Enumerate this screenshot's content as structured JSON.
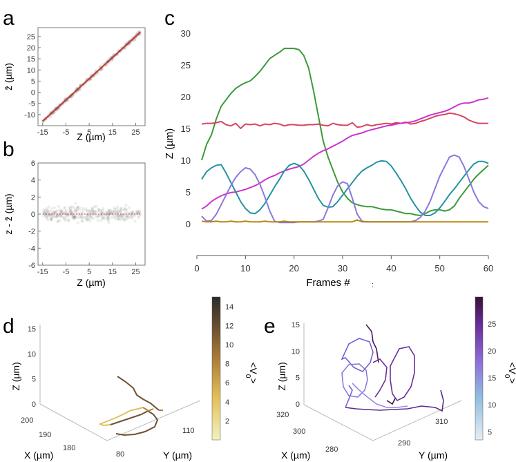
{
  "panels": {
    "a": "a",
    "b": "b",
    "c": "c",
    "d": "d",
    "e": "e"
  },
  "colors": {
    "green": "#3a9a3a",
    "red": "#d6455e",
    "magenta": "#cc33cc",
    "teal": "#22939f",
    "purple": "#8a78e0",
    "orange": "#b8860b",
    "diag": "#c0392b",
    "scatter": "#555555"
  },
  "chart_data": [
    {
      "id": "a",
      "type": "scatter",
      "xlabel": "Z (µm)",
      "ylabel": "ẑ (µm)",
      "xlim": [
        -17,
        29
      ],
      "ylim": [
        -15,
        29
      ],
      "xticks": [
        -15,
        -5,
        5,
        15,
        25
      ],
      "yticks": [
        -10,
        -5,
        0,
        5,
        10,
        15,
        20,
        25
      ],
      "fit_line": {
        "x": [
          -15,
          27
        ],
        "y": [
          -13,
          27
        ]
      }
    },
    {
      "id": "b",
      "type": "scatter",
      "xlabel": "Z (µm)",
      "ylabel": "z - ẑ (µm)",
      "xlim": [
        -17,
        29
      ],
      "ylim": [
        -6,
        6
      ],
      "xticks": [
        -15,
        -5,
        5,
        15,
        25
      ],
      "yticks": [
        -6,
        -4,
        -2,
        0,
        2,
        4,
        6
      ],
      "fit_line": {
        "x": [
          -15,
          27
        ],
        "y": [
          0,
          0
        ]
      }
    },
    {
      "id": "c",
      "type": "line",
      "xlabel": "Frames #",
      "ylabel": "Z (µm)",
      "xlim": [
        0,
        60
      ],
      "ylim": [
        -5,
        30
      ],
      "xticks": [
        0,
        10,
        20,
        30,
        40,
        50,
        60
      ],
      "yticks": [
        0,
        5,
        10,
        15,
        20,
        25,
        30
      ],
      "series": [
        {
          "color": "green",
          "x": [
            1,
            2,
            3,
            4,
            5,
            6,
            7,
            8,
            9,
            10,
            11,
            12,
            13,
            14,
            15,
            16,
            17,
            18,
            19,
            20,
            21,
            22,
            23,
            24,
            25,
            26,
            27,
            28,
            29,
            30,
            31,
            32,
            33,
            34,
            35,
            36,
            37,
            38,
            39,
            40,
            41,
            42,
            43,
            44,
            45,
            46,
            47,
            48,
            49,
            50,
            51,
            52,
            53,
            54,
            55,
            56,
            57,
            58,
            59,
            60
          ],
          "values": [
            10,
            12.5,
            14,
            16.5,
            18.5,
            19.5,
            20.5,
            21.3,
            21.8,
            22.2,
            22.5,
            23.2,
            24,
            25,
            26,
            26.5,
            27,
            27.6,
            27.6,
            27.6,
            27.4,
            26.5,
            24.5,
            21,
            17,
            13,
            10.5,
            8.5,
            6.5,
            5,
            4,
            3.3,
            3,
            2.8,
            2.7,
            2.7,
            2.5,
            2.3,
            2.2,
            2.2,
            2,
            1.8,
            1.6,
            1.6,
            1.4,
            1.3,
            1.6,
            2,
            2.2,
            2.2,
            2,
            2.2,
            2.8,
            4,
            5,
            6,
            7,
            7.8,
            8.5,
            9.2
          ]
        },
        {
          "color": "red",
          "x": [
            1,
            2,
            3,
            4,
            5,
            6,
            7,
            8,
            9,
            10,
            11,
            12,
            13,
            14,
            15,
            16,
            17,
            18,
            19,
            20,
            21,
            22,
            23,
            24,
            25,
            26,
            27,
            28,
            29,
            30,
            31,
            32,
            33,
            34,
            35,
            36,
            37,
            38,
            39,
            40,
            41,
            42,
            43,
            44,
            45,
            46,
            47,
            48,
            49,
            50,
            51,
            52,
            53,
            54,
            55,
            56,
            57,
            58,
            59,
            60
          ],
          "values": [
            15.7,
            15.8,
            15.8,
            15.9,
            16.1,
            15.6,
            15.4,
            15.8,
            15.0,
            15.7,
            15.6,
            15.7,
            15.4,
            15.7,
            15.6,
            15.8,
            15.7,
            15.4,
            15.6,
            15.6,
            15.5,
            15.5,
            15.6,
            15.6,
            15.7,
            15.5,
            15.4,
            15.8,
            15.6,
            15.5,
            15.5,
            15.9,
            15.2,
            15.3,
            15.6,
            15.4,
            15.6,
            15.7,
            15.8,
            15.7,
            15.9,
            15.8,
            16.0,
            15.7,
            15.8,
            16.1,
            16.3,
            16.6,
            16.9,
            17.1,
            17.2,
            17.4,
            17.3,
            17.1,
            16.8,
            16.3,
            16.0,
            15.8,
            15.8,
            15.8
          ]
        },
        {
          "color": "magenta",
          "x": [
            1,
            2,
            3,
            4,
            5,
            6,
            7,
            8,
            9,
            10,
            11,
            12,
            13,
            14,
            15,
            16,
            17,
            18,
            19,
            20,
            21,
            22,
            23,
            24,
            25,
            26,
            27,
            28,
            29,
            30,
            31,
            32,
            33,
            34,
            35,
            36,
            37,
            38,
            39,
            40,
            41,
            42,
            43,
            44,
            45,
            46,
            47,
            48,
            49,
            50,
            51,
            52,
            53,
            54,
            55,
            56,
            57,
            58,
            59,
            60
          ],
          "values": [
            2.3,
            2.8,
            3.5,
            4.0,
            4.4,
            4.7,
            4.9,
            5.0,
            5.2,
            5.4,
            5.7,
            6.0,
            6.4,
            6.9,
            7.3,
            7.6,
            8.0,
            8.3,
            8.6,
            8.8,
            9.0,
            9.4,
            10.0,
            10.6,
            11.1,
            11.5,
            11.8,
            12.2,
            12.6,
            13.0,
            13.5,
            13.9,
            14.1,
            14.3,
            14.6,
            14.8,
            15.0,
            15.2,
            15.4,
            15.5,
            15.7,
            15.8,
            15.9,
            16.0,
            16.2,
            16.5,
            16.8,
            17.1,
            17.3,
            17.5,
            17.7,
            18.0,
            18.4,
            18.8,
            19.0,
            19.0,
            19.2,
            19.5,
            19.6,
            19.8
          ]
        },
        {
          "color": "teal",
          "x": [
            1,
            2,
            3,
            4,
            5,
            6,
            7,
            8,
            9,
            10,
            11,
            12,
            13,
            14,
            15,
            16,
            17,
            18,
            19,
            20,
            21,
            22,
            23,
            24,
            25,
            26,
            27,
            28,
            29,
            30,
            31,
            32,
            33,
            34,
            35,
            36,
            37,
            38,
            39,
            40,
            41,
            42,
            43,
            44,
            45,
            46,
            47,
            48,
            49,
            50,
            51,
            52,
            53,
            54,
            55,
            56,
            57,
            58,
            59,
            60
          ],
          "values": [
            7,
            8.2,
            8.8,
            9.2,
            9.3,
            8.0,
            6.5,
            5.0,
            3.5,
            2.4,
            1.7,
            1.6,
            2.2,
            3.2,
            4.5,
            5.8,
            7.0,
            8.3,
            9.2,
            9.5,
            9.2,
            8.3,
            7.0,
            5.5,
            4.0,
            2.9,
            2.6,
            2.7,
            3.5,
            4.5,
            5.5,
            6.5,
            7.5,
            8.3,
            8.8,
            9.2,
            9.7,
            9.9,
            9.8,
            9.1,
            8.0,
            6.8,
            5.5,
            4.0,
            2.8,
            1.8,
            1.3,
            1.3,
            1.7,
            2.5,
            3.5,
            4.6,
            5.5,
            6.5,
            7.5,
            8.5,
            9.4,
            9.8,
            9.8,
            9.5
          ]
        },
        {
          "color": "purple",
          "x": [
            1,
            2,
            3,
            4,
            5,
            6,
            7,
            8,
            9,
            10,
            11,
            12,
            13,
            14,
            15,
            16,
            17,
            18,
            19,
            20,
            21,
            22,
            23,
            24,
            25,
            26,
            27,
            28,
            29,
            30,
            31,
            32,
            33,
            34,
            35,
            36,
            37,
            38,
            39,
            40,
            41,
            42,
            43,
            44,
            45,
            46,
            47,
            48,
            49,
            50,
            51,
            52,
            53,
            54,
            55,
            56,
            57,
            58,
            59,
            60
          ],
          "values": [
            1.2,
            0.4,
            0.5,
            1.5,
            3.0,
            4.5,
            6.0,
            7.3,
            8.2,
            8.8,
            8.6,
            7.7,
            6.2,
            4.2,
            2.0,
            0.4,
            0.2,
            0.2,
            0.2,
            0.2,
            0.3,
            0.3,
            0.3,
            0.3,
            0.4,
            0.7,
            2.5,
            4.5,
            6.0,
            6.6,
            6.3,
            4.0,
            1.5,
            0.4,
            0.3,
            0.3,
            0.3,
            0.3,
            0.3,
            0.3,
            0.3,
            0.3,
            0.3,
            0.3,
            0.5,
            1.0,
            2.0,
            3.5,
            5.5,
            7.5,
            9.0,
            10.5,
            10.8,
            10.5,
            9.0,
            7.0,
            5.0,
            3.5,
            2.7,
            2.4
          ]
        },
        {
          "color": "orange",
          "x": [
            1,
            2,
            3,
            4,
            5,
            6,
            7,
            8,
            9,
            10,
            11,
            12,
            13,
            14,
            15,
            16,
            17,
            18,
            19,
            20,
            21,
            22,
            23,
            24,
            25,
            26,
            27,
            28,
            29,
            30,
            31,
            32,
            33,
            34,
            35,
            36,
            37,
            38,
            39,
            40,
            41,
            42,
            43,
            44,
            45,
            46,
            47,
            48,
            49,
            50,
            51,
            52,
            53,
            54,
            55,
            56,
            57,
            58,
            59,
            60
          ],
          "values": [
            0.4,
            0.3,
            0.3,
            0.4,
            0.3,
            0.3,
            0.4,
            0.3,
            0.3,
            0.4,
            0.3,
            0.3,
            0.3,
            0.4,
            0.3,
            0.3,
            0.3,
            0.4,
            0.3,
            0.3,
            0.3,
            0.3,
            0.3,
            0.3,
            0.3,
            0.3,
            0.3,
            0.3,
            0.3,
            0.3,
            0.3,
            0.3,
            0.6,
            0.3,
            0.3,
            0.3,
            0.3,
            0.3,
            0.3,
            0.3,
            0.3,
            0.3,
            0.3,
            0.3,
            0.3,
            0.3,
            0.3,
            0.3,
            0.3,
            0.3,
            0.3,
            0.3,
            0.3,
            0.3,
            0.3,
            0.3,
            0.3,
            0.3,
            0.3,
            0.3
          ]
        }
      ],
      "annotation": ":"
    },
    {
      "id": "d",
      "type": "line3d",
      "xlabel": "X (µm)",
      "ylabel": "Y (µm)",
      "zlabel": "Z (µm)",
      "zticks": [
        0,
        5,
        10,
        15
      ],
      "xticks": [
        180,
        190,
        200
      ],
      "yticks": [
        80,
        110
      ],
      "colorbar": {
        "label": "<V0>",
        "ticks": [
          2,
          4,
          6,
          8,
          10,
          12,
          14
        ],
        "colors": [
          "#f3f1c0",
          "#e0c05a",
          "#b0803a",
          "#6e5130",
          "#2b2b2b"
        ]
      }
    },
    {
      "id": "e",
      "type": "line3d",
      "xlabel": "X (µm)",
      "ylabel": "Y (µm)",
      "zlabel": "Z (µm)",
      "zticks": [
        0,
        5,
        10,
        15
      ],
      "xticks": [
        280,
        300,
        320
      ],
      "yticks": [
        290,
        310
      ],
      "colorbar": {
        "label": "<V0>",
        "ticks": [
          5,
          10,
          15,
          20,
          25
        ],
        "colors": [
          "#e8eef2",
          "#8fbde0",
          "#8c6fd8",
          "#6a2f9a",
          "#3a1038"
        ]
      }
    }
  ]
}
